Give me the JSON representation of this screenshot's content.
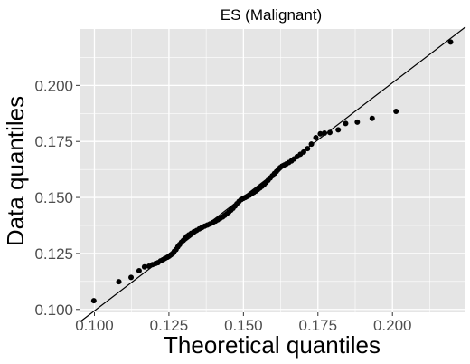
{
  "chart_data": {
    "type": "scatter",
    "title": "ES (Malignant)",
    "xlabel": "Theoretical quantiles",
    "ylabel": "Data quantiles",
    "xlim": [
      0.095,
      0.2245
    ],
    "ylim": [
      0.0987,
      0.2252
    ],
    "xticks": [
      "0.100",
      "0.125",
      "0.150",
      "0.175",
      "0.200"
    ],
    "yticks": [
      "0.100",
      "0.125",
      "0.150",
      "0.175",
      "0.200"
    ],
    "reference_line": {
      "x": [
        0.095,
        0.2245
      ],
      "y": [
        0.0943,
        0.2261
      ]
    },
    "grid": true,
    "background": "#e5e5e5",
    "grid_color": "#ffffff",
    "point_color": "#000000",
    "line_color": "#000000",
    "series": [
      {
        "points": [
          [
            0.0998,
            0.1039
          ],
          [
            0.1082,
            0.1124
          ],
          [
            0.1123,
            0.1143
          ],
          [
            0.115,
            0.1173
          ],
          [
            0.1168,
            0.119
          ],
          [
            0.1183,
            0.1193
          ],
          [
            0.1195,
            0.12
          ],
          [
            0.1205,
            0.1205
          ],
          [
            0.1213,
            0.1209
          ],
          [
            0.1222,
            0.1217
          ],
          [
            0.123,
            0.1222
          ],
          [
            0.1237,
            0.1228
          ],
          [
            0.1245,
            0.1233
          ],
          [
            0.1251,
            0.1238
          ],
          [
            0.1257,
            0.1244
          ],
          [
            0.1263,
            0.125
          ],
          [
            0.1268,
            0.126
          ],
          [
            0.1274,
            0.1268
          ],
          [
            0.128,
            0.128
          ],
          [
            0.1286,
            0.129
          ],
          [
            0.1292,
            0.13
          ],
          [
            0.1298,
            0.1308
          ],
          [
            0.1304,
            0.1318
          ],
          [
            0.131,
            0.1326
          ],
          [
            0.1317,
            0.1333
          ],
          [
            0.1325,
            0.134
          ],
          [
            0.1334,
            0.1347
          ],
          [
            0.1343,
            0.1353
          ],
          [
            0.1352,
            0.136
          ],
          [
            0.1361,
            0.1366
          ],
          [
            0.137,
            0.1372
          ],
          [
            0.1379,
            0.1377
          ],
          [
            0.1388,
            0.1382
          ],
          [
            0.1397,
            0.1388
          ],
          [
            0.1406,
            0.1394
          ],
          [
            0.1414,
            0.14
          ],
          [
            0.1422,
            0.1407
          ],
          [
            0.143,
            0.1413
          ],
          [
            0.1437,
            0.142
          ],
          [
            0.1444,
            0.1427
          ],
          [
            0.1451,
            0.1435
          ],
          [
            0.1458,
            0.1443
          ],
          [
            0.1465,
            0.1452
          ],
          [
            0.1472,
            0.1462
          ],
          [
            0.1478,
            0.1472
          ],
          [
            0.1485,
            0.1482
          ],
          [
            0.1492,
            0.149
          ],
          [
            0.1499,
            0.1495
          ],
          [
            0.1506,
            0.15
          ],
          [
            0.1513,
            0.1505
          ],
          [
            0.152,
            0.151
          ],
          [
            0.1527,
            0.1516
          ],
          [
            0.1534,
            0.1522
          ],
          [
            0.1541,
            0.1528
          ],
          [
            0.1548,
            0.1535
          ],
          [
            0.1555,
            0.1542
          ],
          [
            0.1562,
            0.155
          ],
          [
            0.1569,
            0.1558
          ],
          [
            0.1576,
            0.1567
          ],
          [
            0.1583,
            0.1577
          ],
          [
            0.159,
            0.1587
          ],
          [
            0.1597,
            0.1597
          ],
          [
            0.1604,
            0.1607
          ],
          [
            0.1611,
            0.1616
          ],
          [
            0.1617,
            0.1625
          ],
          [
            0.1623,
            0.1633
          ],
          [
            0.163,
            0.164
          ],
          [
            0.1637,
            0.1645
          ],
          [
            0.1644,
            0.165
          ],
          [
            0.1652,
            0.1656
          ],
          [
            0.1661,
            0.1663
          ],
          [
            0.167,
            0.1672
          ],
          [
            0.168,
            0.1682
          ],
          [
            0.1691,
            0.1693
          ],
          [
            0.1702,
            0.1703
          ],
          [
            0.1715,
            0.1718
          ],
          [
            0.1728,
            0.1738
          ],
          [
            0.1743,
            0.1767
          ],
          [
            0.1758,
            0.1784
          ],
          [
            0.1772,
            0.1787
          ],
          [
            0.179,
            0.179
          ],
          [
            0.1818,
            0.1802
          ],
          [
            0.1843,
            0.183
          ],
          [
            0.1882,
            0.1836
          ],
          [
            0.1932,
            0.1853
          ],
          [
            0.2012,
            0.1884
          ],
          [
            0.2195,
            0.2194
          ]
        ]
      }
    ]
  }
}
